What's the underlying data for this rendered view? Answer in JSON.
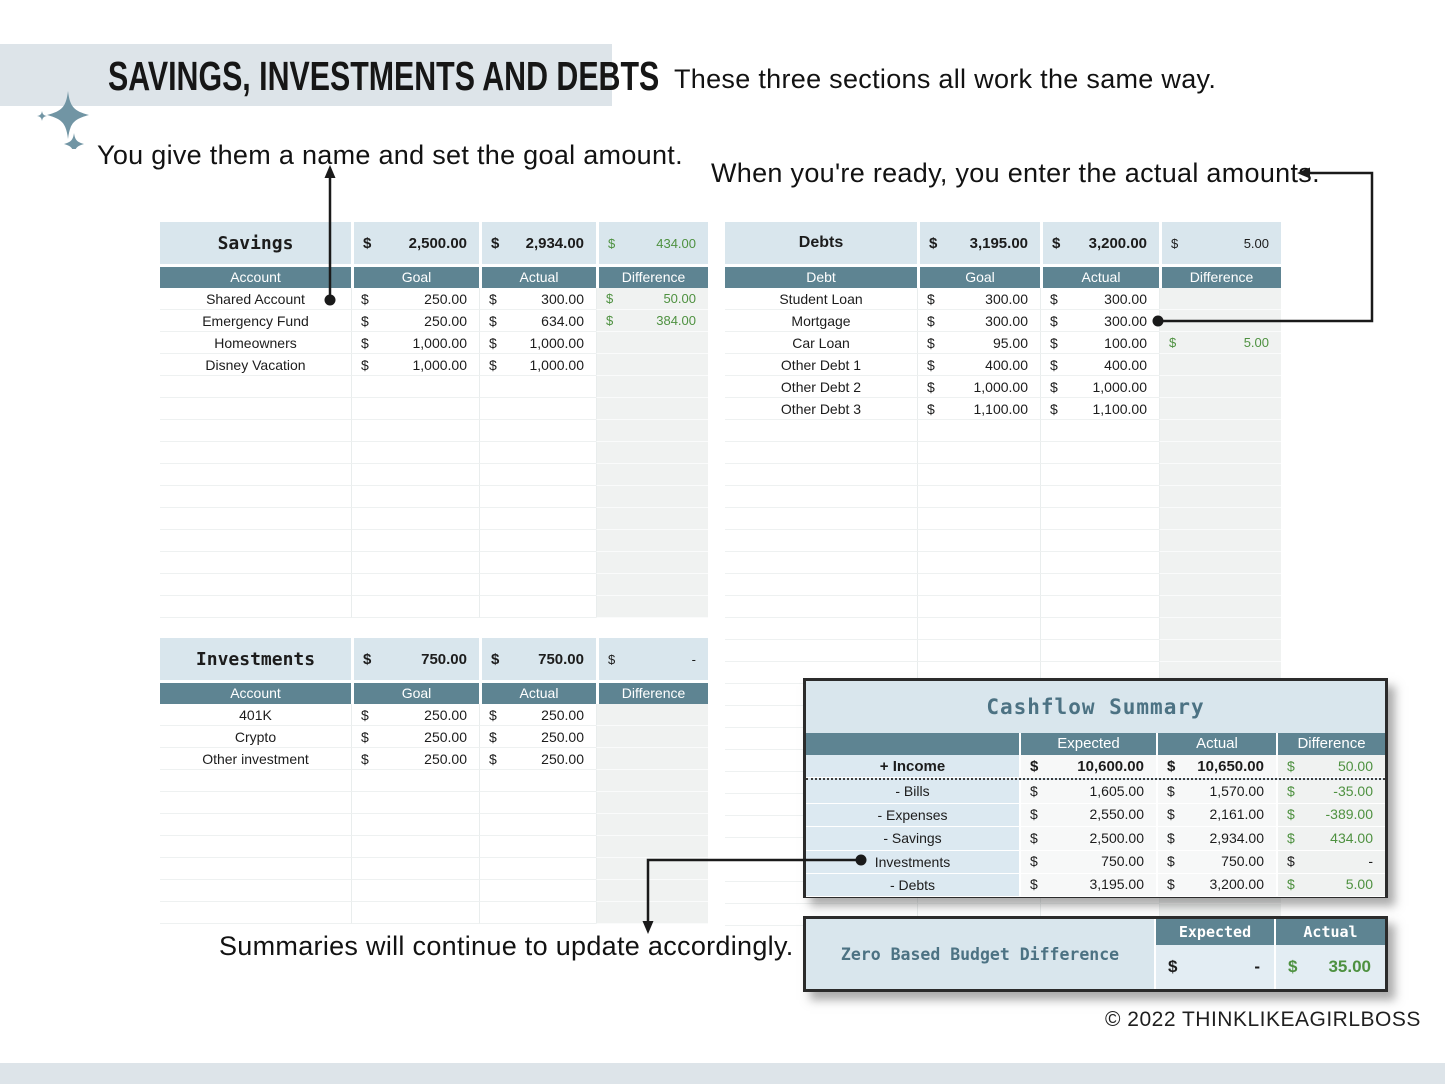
{
  "currency": "$",
  "header": {
    "title": "SAVINGS, INVESTMENTS AND DEBTS"
  },
  "annotations": {
    "top_right": "These three sections all work the same way.",
    "name_goal": "You give them a name and set the goal amount.",
    "actual_amounts": "When you're ready, you enter the actual amounts.",
    "summaries": "Summaries will continue to update accordingly."
  },
  "savings": {
    "title": "Savings",
    "title_font": "mono",
    "goal_total": "2,500.00",
    "actual_total": "2,934.00",
    "title_diff": {
      "value": "434.00",
      "green": true
    },
    "columns": [
      "Account",
      "Goal",
      "Actual",
      "Difference"
    ],
    "rows": [
      {
        "label": "Shared Account",
        "goal": "250.00",
        "actual": "300.00",
        "diff": "50.00"
      },
      {
        "label": "Emergency Fund",
        "goal": "250.00",
        "actual": "634.00",
        "diff": "384.00"
      },
      {
        "label": "Homeowners",
        "goal": "1,000.00",
        "actual": "1,000.00",
        "diff": ""
      },
      {
        "label": "Disney Vacation",
        "goal": "1,000.00",
        "actual": "1,000.00",
        "diff": ""
      }
    ],
    "empty_rows": 11
  },
  "debts": {
    "title": "Debts",
    "title_font": "sans",
    "goal_total": "3,195.00",
    "actual_total": "3,200.00",
    "title_diff": {
      "value": "5.00",
      "green": false
    },
    "columns": [
      "Debt",
      "Goal",
      "Actual",
      "Difference"
    ],
    "rows": [
      {
        "label": "Student Loan",
        "goal": "300.00",
        "actual": "300.00",
        "diff": ""
      },
      {
        "label": "Mortgage",
        "goal": "300.00",
        "actual": "300.00",
        "diff": ""
      },
      {
        "label": "Car Loan",
        "goal": "95.00",
        "actual": "100.00",
        "diff": "5.00"
      },
      {
        "label": "Other Debt 1",
        "goal": "400.00",
        "actual": "400.00",
        "diff": ""
      },
      {
        "label": "Other Debt 2",
        "goal": "1,000.00",
        "actual": "1,000.00",
        "diff": ""
      },
      {
        "label": "Other Debt 3",
        "goal": "1,100.00",
        "actual": "1,100.00",
        "diff": ""
      }
    ],
    "empty_rows": 23
  },
  "investments": {
    "title": "Investments",
    "title_font": "mono",
    "goal_total": "750.00",
    "actual_total": "750.00",
    "title_diff": {
      "value": "-",
      "green": false
    },
    "columns": [
      "Account",
      "Goal",
      "Actual",
      "Difference"
    ],
    "rows": [
      {
        "label": "401K",
        "goal": "250.00",
        "actual": "250.00",
        "diff": ""
      },
      {
        "label": "Crypto",
        "goal": "250.00",
        "actual": "250.00",
        "diff": ""
      },
      {
        "label": "Other investment",
        "goal": "250.00",
        "actual": "250.00",
        "diff": ""
      }
    ],
    "empty_rows": 7
  },
  "cashflow": {
    "title": "Cashflow Summary",
    "columns": [
      "",
      "Expected",
      "Actual",
      "Difference"
    ],
    "rows": [
      {
        "label": "+ Income",
        "expected": "10,600.00",
        "actual": "10,650.00",
        "diff": "50.00",
        "diff_green": true,
        "bold": true,
        "dotted_bottom": true
      },
      {
        "label": "- Bills",
        "expected": "1,605.00",
        "actual": "1,570.00",
        "diff": "-35.00",
        "diff_green": true,
        "bold": false,
        "dotted_bottom": false
      },
      {
        "label": "- Expenses",
        "expected": "2,550.00",
        "actual": "2,161.00",
        "diff": "-389.00",
        "diff_green": true,
        "bold": false,
        "dotted_bottom": false
      },
      {
        "label": "- Savings",
        "expected": "2,500.00",
        "actual": "2,934.00",
        "diff": "434.00",
        "diff_green": true,
        "bold": false,
        "dotted_bottom": false
      },
      {
        "label": "Investments",
        "expected": "750.00",
        "actual": "750.00",
        "diff": "-",
        "diff_green": false,
        "bold": false,
        "dotted_bottom": false
      },
      {
        "label": "- Debts",
        "expected": "3,195.00",
        "actual": "3,200.00",
        "diff": "5.00",
        "diff_green": true,
        "bold": false,
        "dotted_bottom": false
      }
    ]
  },
  "zero_budget": {
    "title": "Zero Based Budget Difference",
    "expected_label": "Expected",
    "actual_label": "Actual",
    "expected_value": "-",
    "actual_value": "35.00"
  },
  "footer": {
    "copyright": "©  2022 THINKLIKEAGIRLBOSS"
  },
  "colors": {
    "slate_header": "#5e8492",
    "panel_blue": "#d9e6ed",
    "label_blue": "#dce9f1",
    "banner_blue": "#dde4e9",
    "green": "#4e9140",
    "teal_title_text": "#4c7283",
    "difference_gray": "#f0f2f1",
    "border_dark": "#2b2b2b"
  }
}
